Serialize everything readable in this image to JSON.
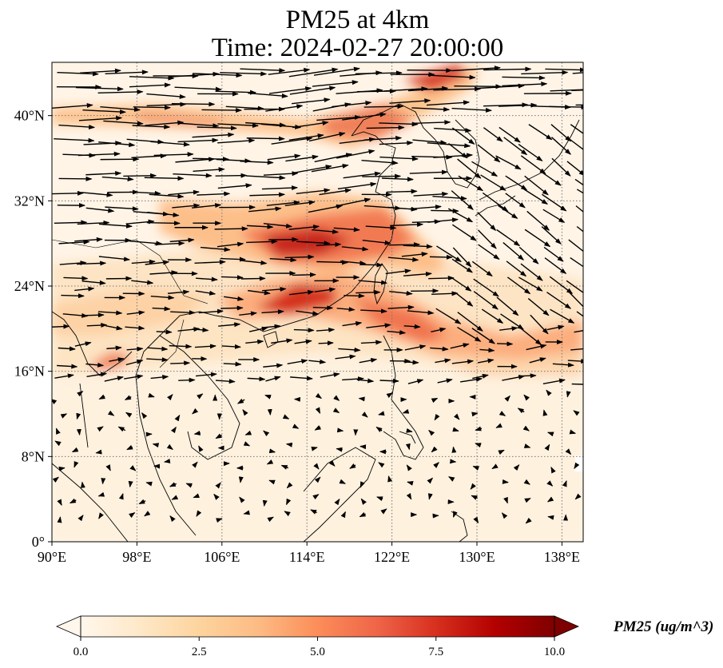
{
  "title_line1": "PM25 at 4km",
  "title_line2": "Time: 2024-02-27 20:00:00",
  "map": {
    "lon_range": [
      90,
      140
    ],
    "lat_range": [
      0,
      45
    ],
    "lon_ticks": [
      {
        "value": 90,
        "label": "90°E"
      },
      {
        "value": 98,
        "label": "98°E"
      },
      {
        "value": 106,
        "label": "106°E"
      },
      {
        "value": 114,
        "label": "114°E"
      },
      {
        "value": 122,
        "label": "122°E"
      },
      {
        "value": 130,
        "label": "130°E"
      },
      {
        "value": 138,
        "label": "138°E"
      }
    ],
    "lat_ticks": [
      {
        "value": 0,
        "label": "0°"
      },
      {
        "value": 8,
        "label": "8°N"
      },
      {
        "value": 16,
        "label": "16°N"
      },
      {
        "value": 24,
        "label": "24°N"
      },
      {
        "value": 32,
        "label": "32°N"
      },
      {
        "value": 40,
        "label": "40°N"
      }
    ],
    "gridlines": "dotted",
    "wind_vectors": true
  },
  "colorbar": {
    "label": "PM25 (ug/m^3)",
    "min": 0,
    "max": 10,
    "extend": "both",
    "colormap": "OrRd",
    "colors": [
      "#fff7ec",
      "#fee8c8",
      "#fdd49e",
      "#fdbb84",
      "#fc8d59",
      "#ef6548",
      "#d7301f",
      "#b30000",
      "#7f0000"
    ],
    "ticks": [
      {
        "value": 0,
        "label": "0.0"
      },
      {
        "value": 2.5,
        "label": "2.5"
      },
      {
        "value": 5,
        "label": "5.0"
      },
      {
        "value": 7.5,
        "label": "7.5"
      },
      {
        "value": 10,
        "label": "10.0"
      }
    ]
  }
}
